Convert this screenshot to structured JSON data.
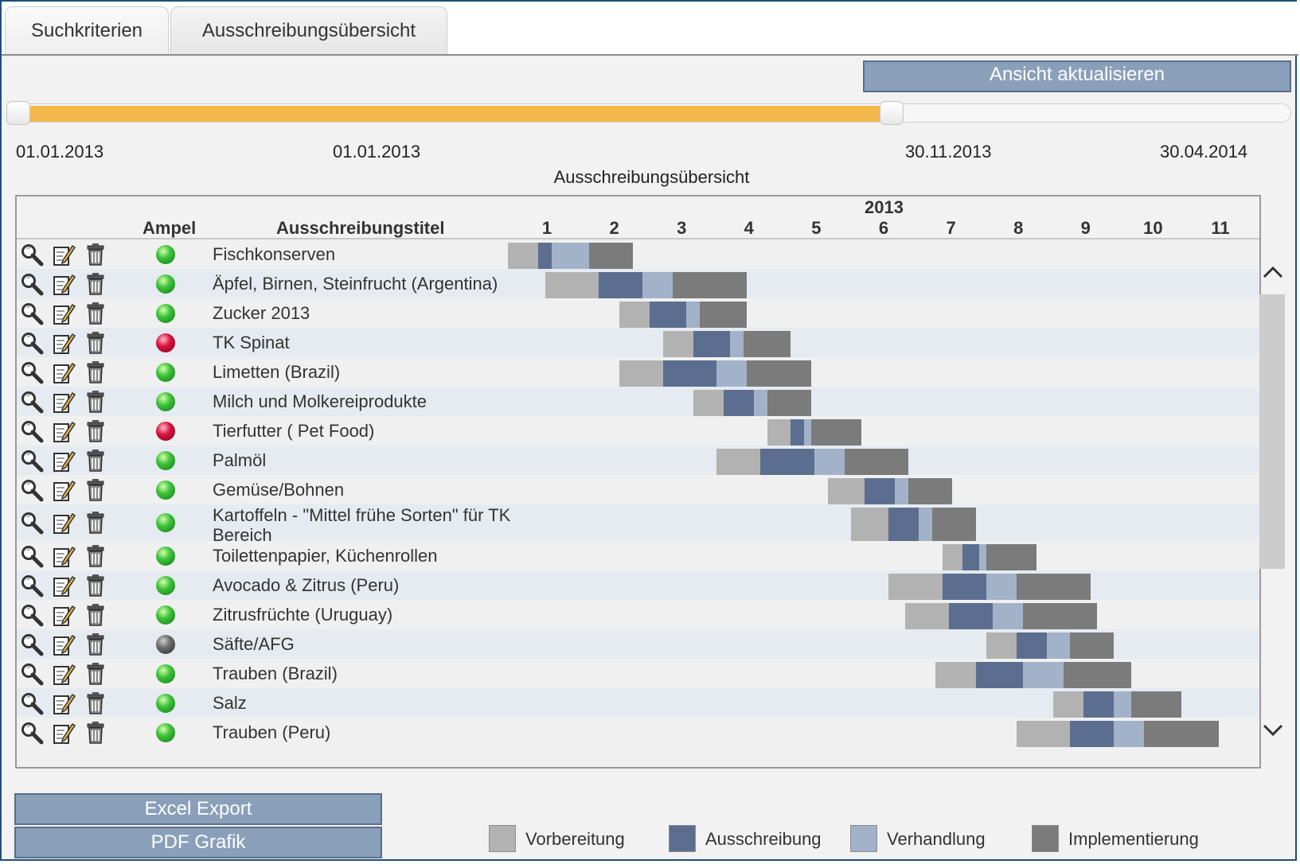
{
  "tabs": [
    {
      "label": "Suchkriterien"
    },
    {
      "label": "Ausschreibungsübersicht"
    }
  ],
  "buttons": {
    "refresh": "Ansicht aktualisieren",
    "excel": "Excel Export",
    "pdf": "PDF Grafik"
  },
  "slider": {
    "min_date": "01.01.2013",
    "from_date": "01.01.2013",
    "to_date": "30.11.2013",
    "max_date": "30.04.2014"
  },
  "chart_title": "Ausschreibungsübersicht",
  "columns": {
    "ampel": "Ampel",
    "titel": "Ausschreibungstitel",
    "year": "2013",
    "months": [
      "1",
      "2",
      "3",
      "4",
      "5",
      "6",
      "7",
      "8",
      "9",
      "10",
      "11"
    ]
  },
  "colors": {
    "vorbereitung": "#b2b2b2",
    "ausschreibung": "#5b6e8f",
    "verhandlung": "#a2b2c9",
    "implementierung": "#7b7b7b",
    "slider_fill": "#f5b84c",
    "button": "#8a9fba"
  },
  "legend": [
    {
      "label": "Vorbereitung",
      "color": "#b2b2b2"
    },
    {
      "label": "Ausschreibung",
      "color": "#5b6e8f"
    },
    {
      "label": "Verhandlung",
      "color": "#a2b2c9"
    },
    {
      "label": "Implementierung",
      "color": "#7b7b7b"
    }
  ],
  "rows": [
    {
      "title": "Fischkonserven",
      "ampel": "green",
      "phases": [
        0.0,
        0.45,
        0.65,
        1.2,
        1.85
      ]
    },
    {
      "title": "Äpfel, Birnen, Steinfrucht (Argentina)",
      "ampel": "green",
      "phases": [
        0.55,
        1.35,
        2.0,
        2.45,
        3.55
      ]
    },
    {
      "title": "Zucker 2013",
      "ampel": "green",
      "phases": [
        1.65,
        2.1,
        2.65,
        2.85,
        3.55
      ]
    },
    {
      "title": "TK Spinat",
      "ampel": "red",
      "phases": [
        2.3,
        2.75,
        3.3,
        3.5,
        4.2
      ]
    },
    {
      "title": "Limetten (Brazil)",
      "ampel": "green",
      "phases": [
        1.65,
        2.3,
        3.1,
        3.55,
        4.5
      ]
    },
    {
      "title": "Milch und Molkereiprodukte",
      "ampel": "green",
      "phases": [
        2.75,
        3.2,
        3.65,
        3.85,
        4.5
      ]
    },
    {
      "title": "Tierfutter ( Pet Food)",
      "ampel": "red",
      "phases": [
        3.85,
        4.2,
        4.4,
        4.5,
        5.25
      ]
    },
    {
      "title": "Palmöl",
      "ampel": "green",
      "phases": [
        3.1,
        3.75,
        4.55,
        5.0,
        5.95
      ]
    },
    {
      "title": "Gemüse/Bohnen",
      "ampel": "green",
      "phases": [
        4.75,
        5.3,
        5.75,
        5.95,
        6.6
      ]
    },
    {
      "title": "Kartoffeln - \"Mittel frühe Sorten\" für TK Bereich",
      "ampel": "green",
      "phases": [
        5.1,
        5.65,
        6.1,
        6.3,
        6.95
      ]
    },
    {
      "title": "Toilettenpapier, Küchenrollen",
      "ampel": "green",
      "phases": [
        6.45,
        6.75,
        7.0,
        7.1,
        7.85
      ]
    },
    {
      "title": "Avocado & Zitrus (Peru)",
      "ampel": "green",
      "phases": [
        5.65,
        6.45,
        7.1,
        7.55,
        8.65
      ]
    },
    {
      "title": "Zitrusfrüchte (Uruguay)",
      "ampel": "green",
      "phases": [
        5.9,
        6.55,
        7.2,
        7.65,
        8.75
      ]
    },
    {
      "title": "Säfte/AFG",
      "ampel": "gray",
      "phases": [
        7.1,
        7.55,
        8.0,
        8.35,
        9.0
      ]
    },
    {
      "title": "Trauben (Brazil)",
      "ampel": "green",
      "phases": [
        6.35,
        6.95,
        7.65,
        8.25,
        9.25
      ]
    },
    {
      "title": "Salz",
      "ampel": "green",
      "phases": [
        8.1,
        8.55,
        9.0,
        9.25,
        10.0
      ]
    },
    {
      "title": "Trauben (Peru)",
      "ampel": "green",
      "phases": [
        7.55,
        8.35,
        9.0,
        9.45,
        10.55
      ]
    }
  ]
}
